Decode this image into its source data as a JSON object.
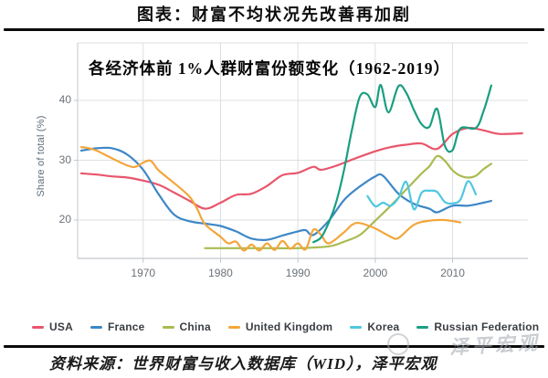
{
  "header": {
    "title": "图表：财富不均状况先改善再加剧"
  },
  "chart_data": {
    "type": "line",
    "title": "各经济体前 1%人群财富份额变化（1962-2019）",
    "xlabel": "",
    "ylabel": "Share of total (%)",
    "xlim": [
      1962,
      2020
    ],
    "ylim": [
      13.6,
      49.6
    ],
    "xticks": [
      1970,
      1980,
      1990,
      2000,
      2010
    ],
    "yticks": [
      20,
      30,
      40
    ],
    "grid": true,
    "legend_position": "bottom",
    "series": [
      {
        "name": "USA",
        "color": "#e8566b",
        "points": [
          [
            1962,
            27.8
          ],
          [
            1964,
            27.6
          ],
          [
            1966,
            27.3
          ],
          [
            1968,
            27.1
          ],
          [
            1970,
            26.6
          ],
          [
            1972,
            25.9
          ],
          [
            1974,
            24.6
          ],
          [
            1976,
            23.2
          ],
          [
            1978,
            21.9
          ],
          [
            1980,
            22.9
          ],
          [
            1982,
            24.2
          ],
          [
            1984,
            24.4
          ],
          [
            1986,
            25.7
          ],
          [
            1988,
            27.5
          ],
          [
            1990,
            27.9
          ],
          [
            1992,
            28.9
          ],
          [
            1993,
            28.4
          ],
          [
            1995,
            29.1
          ],
          [
            1997,
            30.1
          ],
          [
            2000,
            31.5
          ],
          [
            2002,
            32.2
          ],
          [
            2004,
            32.6
          ],
          [
            2006,
            32.8
          ],
          [
            2008,
            31.9
          ],
          [
            2010,
            34.4
          ],
          [
            2012,
            35.4
          ],
          [
            2014,
            35.0
          ],
          [
            2016,
            34.4
          ],
          [
            2019,
            34.5
          ]
        ]
      },
      {
        "name": "France",
        "color": "#3d87c6",
        "points": [
          [
            1962,
            31.6
          ],
          [
            1964,
            32.0
          ],
          [
            1966,
            32.0
          ],
          [
            1968,
            30.9
          ],
          [
            1970,
            28.4
          ],
          [
            1972,
            24.3
          ],
          [
            1974,
            20.9
          ],
          [
            1976,
            19.8
          ],
          [
            1978,
            19.4
          ],
          [
            1980,
            19.0
          ],
          [
            1982,
            18.1
          ],
          [
            1984,
            16.9
          ],
          [
            1986,
            16.7
          ],
          [
            1988,
            17.4
          ],
          [
            1990,
            18.1
          ],
          [
            1991,
            18.3
          ],
          [
            1992,
            17.5
          ],
          [
            1994,
            19.9
          ],
          [
            1996,
            23.4
          ],
          [
            1998,
            25.6
          ],
          [
            2000,
            27.3
          ],
          [
            2001,
            27.4
          ],
          [
            2003,
            24.4
          ],
          [
            2005,
            22.7
          ],
          [
            2007,
            21.9
          ],
          [
            2008,
            21.3
          ],
          [
            2010,
            22.4
          ],
          [
            2012,
            22.4
          ],
          [
            2014,
            22.9
          ],
          [
            2015,
            23.2
          ]
        ]
      },
      {
        "name": "China",
        "color": "#a9bb4f",
        "points": [
          [
            1978,
            15.3
          ],
          [
            1982,
            15.3
          ],
          [
            1986,
            15.3
          ],
          [
            1990,
            15.3
          ],
          [
            1994,
            15.6
          ],
          [
            1996,
            16.4
          ],
          [
            1998,
            17.5
          ],
          [
            2000,
            19.9
          ],
          [
            2002,
            22.4
          ],
          [
            2004,
            25.1
          ],
          [
            2006,
            27.8
          ],
          [
            2007,
            29.0
          ],
          [
            2008,
            30.7
          ],
          [
            2009,
            29.9
          ],
          [
            2010,
            28.3
          ],
          [
            2011,
            27.4
          ],
          [
            2012,
            27.1
          ],
          [
            2013,
            27.4
          ],
          [
            2014,
            28.5
          ],
          [
            2015,
            29.4
          ]
        ]
      },
      {
        "name": "United Kingdom",
        "color": "#f3a63b",
        "points": [
          [
            1962,
            32.2
          ],
          [
            1963,
            32.0
          ],
          [
            1964,
            31.6
          ],
          [
            1966,
            30.3
          ],
          [
            1968,
            29.1
          ],
          [
            1969,
            28.9
          ],
          [
            1970,
            29.6
          ],
          [
            1971,
            29.9
          ],
          [
            1972,
            28.3
          ],
          [
            1974,
            26.2
          ],
          [
            1976,
            23.9
          ],
          [
            1977,
            21.8
          ],
          [
            1978,
            19.3
          ],
          [
            1980,
            17.2
          ],
          [
            1981,
            16.1
          ],
          [
            1982,
            16.4
          ],
          [
            1983,
            14.9
          ],
          [
            1984,
            15.9
          ],
          [
            1985,
            14.9
          ],
          [
            1986,
            16.1
          ],
          [
            1987,
            15.0
          ],
          [
            1988,
            16.5
          ],
          [
            1989,
            15.2
          ],
          [
            1990,
            16.1
          ],
          [
            1991,
            15.1
          ],
          [
            1992,
            18.4
          ],
          [
            1993,
            17.5
          ],
          [
            1994,
            16.1
          ],
          [
            1996,
            18.0
          ],
          [
            1997,
            19.2
          ],
          [
            1998,
            19.5
          ],
          [
            2000,
            18.6
          ],
          [
            2002,
            17.2
          ],
          [
            2003,
            17.0
          ],
          [
            2005,
            19.2
          ],
          [
            2007,
            19.9
          ],
          [
            2009,
            20.0
          ],
          [
            2011,
            19.6
          ]
        ]
      },
      {
        "name": "Korea",
        "color": "#4ec7e0",
        "points": [
          [
            1999,
            24.0
          ],
          [
            2000,
            22.3
          ],
          [
            2001,
            22.9
          ],
          [
            2002,
            22.4
          ],
          [
            2003,
            23.7
          ],
          [
            2004,
            26.4
          ],
          [
            2005,
            21.8
          ],
          [
            2006,
            24.6
          ],
          [
            2007,
            24.9
          ],
          [
            2008,
            24.7
          ],
          [
            2009,
            23.0
          ],
          [
            2010,
            22.8
          ],
          [
            2011,
            23.4
          ],
          [
            2012,
            26.5
          ],
          [
            2013,
            24.3
          ]
        ]
      },
      {
        "name": "Russian Federation",
        "color": "#1a9e81",
        "points": [
          [
            1992,
            16.3
          ],
          [
            1993,
            17.1
          ],
          [
            1994,
            19.6
          ],
          [
            1995,
            23.2
          ],
          [
            1996,
            28.6
          ],
          [
            1997,
            35.2
          ],
          [
            1998,
            40.6
          ],
          [
            1999,
            41.0
          ],
          [
            2000,
            38.9
          ],
          [
            2000.7,
            42.6
          ],
          [
            2001.7,
            38.0
          ],
          [
            2003,
            42.4
          ],
          [
            2004,
            41.3
          ],
          [
            2005,
            38.4
          ],
          [
            2006,
            36.0
          ],
          [
            2007,
            35.6
          ],
          [
            2008,
            38.6
          ],
          [
            2009,
            32.4
          ],
          [
            2010,
            31.7
          ],
          [
            2011,
            35.3
          ],
          [
            2013,
            35.4
          ],
          [
            2014,
            38.2
          ],
          [
            2015,
            42.5
          ]
        ]
      }
    ]
  },
  "footer": {
    "source": "资料来源：世界财富与收入数据库（WID），泽平宏观",
    "watermark": "泽平宏观"
  }
}
